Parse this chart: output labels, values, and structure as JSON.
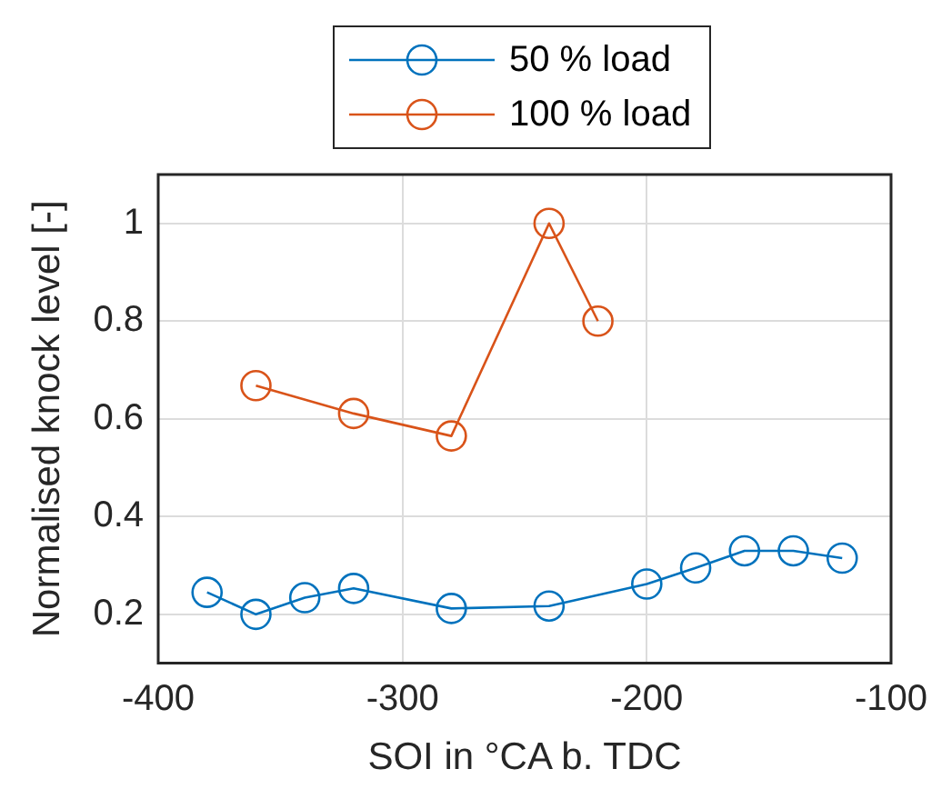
{
  "chart_data": {
    "type": "line",
    "xlabel": "SOI in °CA b. TDC",
    "ylabel": "Normalised knock level [-]",
    "xlim": [
      -400,
      -100
    ],
    "xticks": [
      -400,
      -300,
      -200,
      -100
    ],
    "ylim": [
      0.1,
      1.1
    ],
    "yticks": [
      0.2,
      0.4,
      0.6,
      0.8,
      1
    ],
    "grid": true,
    "legend": "top",
    "marker": "circle",
    "line_style": "solid",
    "series": [
      {
        "name": "50 % load",
        "color": "#0072bd",
        "x": [
          -380,
          -360,
          -340,
          -320,
          -280,
          -240,
          -200,
          -180,
          -160,
          -140,
          -120
        ],
        "values": [
          0.245,
          0.2,
          0.234,
          0.253,
          0.212,
          0.217,
          0.262,
          0.295,
          0.33,
          0.33,
          0.315
        ]
      },
      {
        "name": "100 % load",
        "color": "#d95319",
        "x": [
          -360,
          -320,
          -280,
          -240,
          -220
        ],
        "values": [
          0.668,
          0.611,
          0.565,
          1.0,
          0.8
        ]
      }
    ]
  }
}
